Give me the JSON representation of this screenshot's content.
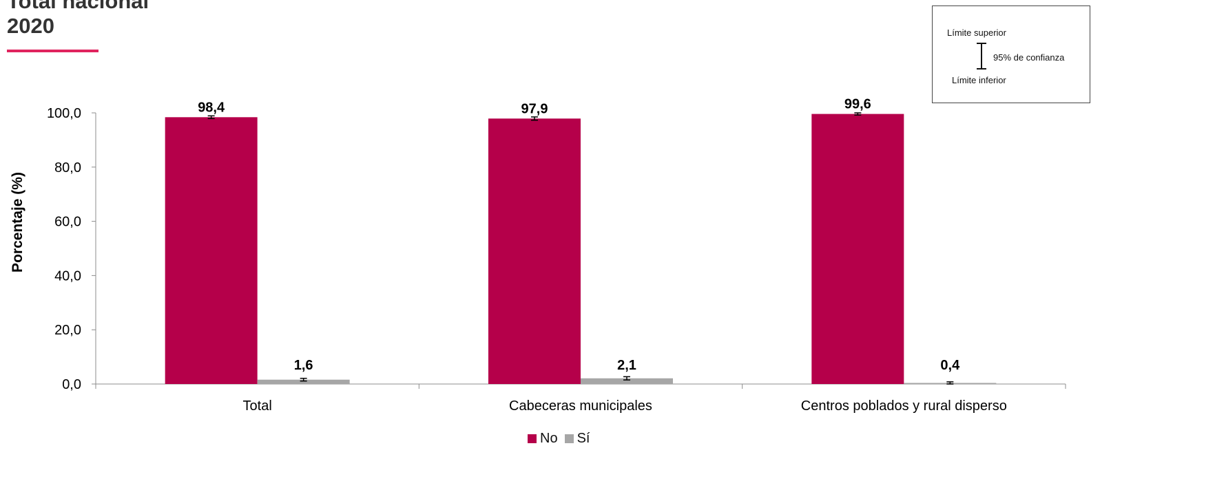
{
  "page": {
    "title_line1": "Total nacional",
    "title_line2": "2020"
  },
  "confidence_note": {
    "upper_label": "Límite superior",
    "lower_label": "Límite inferior",
    "interval_label": "95% de confianza"
  },
  "chart_data": {
    "type": "bar",
    "title": "",
    "xlabel": "",
    "ylabel": "Porcentaje (%)",
    "ylim": [
      0,
      100
    ],
    "yticks": [
      "0,0",
      "20,0",
      "40,0",
      "60,0",
      "80,0",
      "100,0"
    ],
    "ytick_values": [
      0,
      20,
      40,
      60,
      80,
      100
    ],
    "categories": [
      "Total",
      "Cabeceras municipales",
      "Centros poblados y rural disperso"
    ],
    "series": [
      {
        "name": "No",
        "color": "#b5004a",
        "values": [
          98.4,
          97.9,
          99.6
        ],
        "labels": [
          "98,4",
          "97,9",
          "99,6"
        ],
        "ci": [
          [
            97.9,
            98.9
          ],
          [
            97.3,
            98.5
          ],
          [
            99.2,
            100.0
          ]
        ]
      },
      {
        "name": "Sí",
        "color": "#a6a6a6",
        "values": [
          1.6,
          2.1,
          0.4
        ],
        "labels": [
          "1,6",
          "2,1",
          "0,4"
        ],
        "ci": [
          [
            1.1,
            2.1
          ],
          [
            1.5,
            2.7
          ],
          [
            0.0,
            0.8
          ]
        ]
      }
    ],
    "legend_position": "bottom-center",
    "grid": false
  }
}
